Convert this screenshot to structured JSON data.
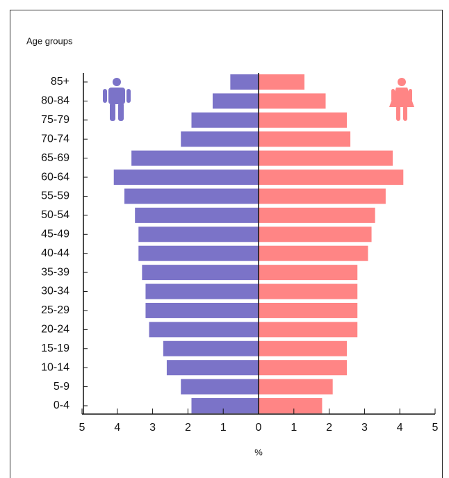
{
  "chart_data": {
    "type": "pyramid",
    "ylabel": "Age groups",
    "xlabel": "%",
    "categories": [
      "85+",
      "80-84",
      "75-79",
      "70-74",
      "65-69",
      "60-64",
      "55-59",
      "50-54",
      "45-49",
      "40-44",
      "35-39",
      "30-34",
      "25-29",
      "20-24",
      "15-19",
      "10-14",
      "5-9",
      "0-4"
    ],
    "series": [
      {
        "color": "#7b73c8",
        "values": [
          -0.8,
          -1.3,
          -1.9,
          -2.2,
          -3.6,
          -4.1,
          -3.8,
          -3.5,
          -3.4,
          -3.4,
          -3.3,
          -3.2,
          -3.2,
          -3.1,
          -2.7,
          -2.6,
          -2.2,
          -1.9
        ]
      },
      {
        "color": "#ff8585",
        "values": [
          1.3,
          1.9,
          2.5,
          2.6,
          3.8,
          4.1,
          3.6,
          3.3,
          3.2,
          3.1,
          2.8,
          2.8,
          2.8,
          2.8,
          2.5,
          2.5,
          2.1,
          1.8
        ]
      }
    ],
    "xlim": [
      -5,
      5
    ],
    "xticks": [
      {
        "value": -5,
        "label": "5"
      },
      {
        "value": -4,
        "label": "4"
      },
      {
        "value": -3,
        "label": "3"
      },
      {
        "value": -2,
        "label": "2"
      },
      {
        "value": -1,
        "label": "1"
      },
      0,
      1,
      2,
      3,
      4,
      5
    ]
  }
}
